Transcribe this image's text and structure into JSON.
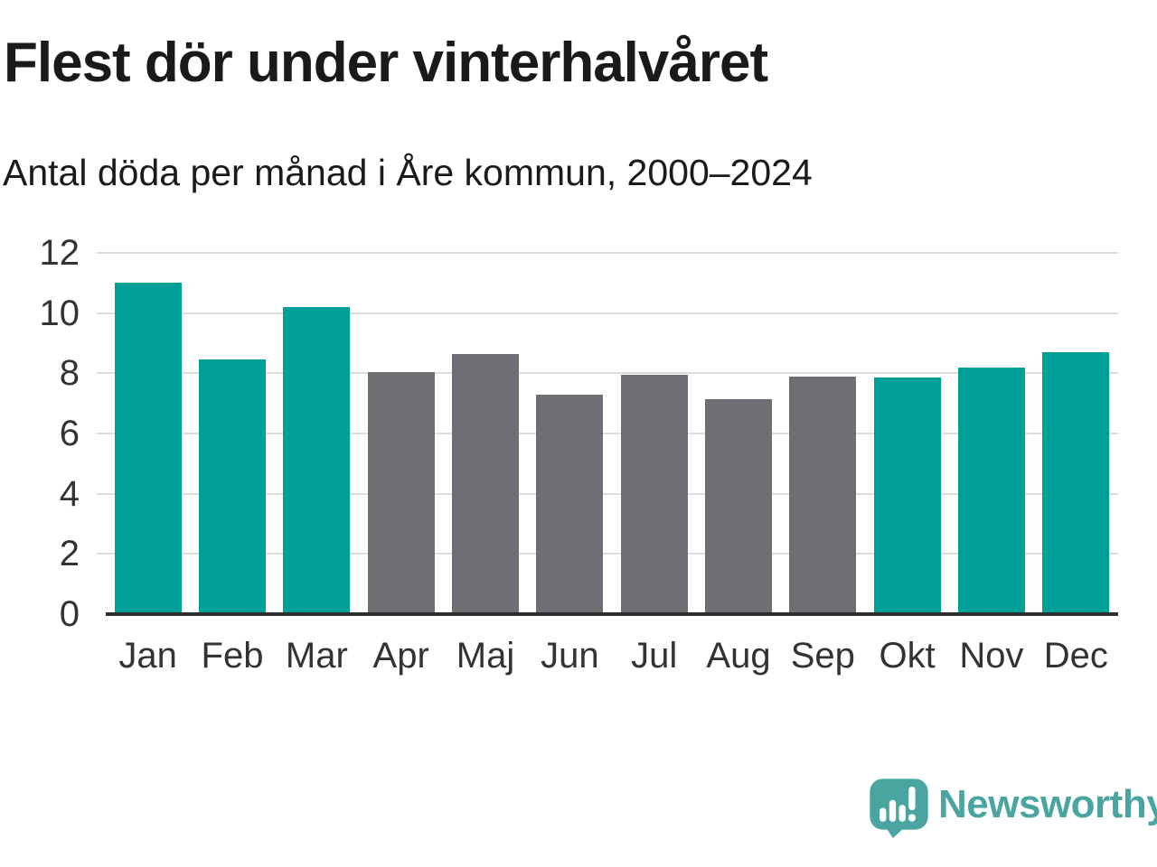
{
  "header": {
    "title": "Flest dör under vinterhalvåret",
    "subtitle": "Antal döda per månad i Åre kommun, 2000–2024"
  },
  "chart_data": {
    "type": "bar",
    "title": "Flest dör under vinterhalvåret",
    "subtitle": "Antal döda per månad i Åre kommun, 2000–2024",
    "categories": [
      "Jan",
      "Feb",
      "Mar",
      "Apr",
      "Maj",
      "Jun",
      "Jul",
      "Aug",
      "Sep",
      "Okt",
      "Nov",
      "Dec"
    ],
    "values": [
      11.0,
      8.45,
      10.2,
      8.05,
      8.65,
      7.3,
      7.95,
      7.15,
      7.9,
      7.85,
      8.2,
      8.7
    ],
    "bar_color_keys": [
      "winter",
      "winter",
      "winter",
      "summer",
      "summer",
      "summer",
      "summer",
      "summer",
      "summer",
      "winter",
      "winter",
      "winter"
    ],
    "colors": {
      "winter": "#00A098",
      "summer": "#6E6E73"
    },
    "xlabel": "",
    "ylabel": "",
    "ylim": [
      0,
      12
    ],
    "yticks": [
      0,
      2,
      4,
      6,
      8,
      10,
      12
    ],
    "grid": "horizontal-only",
    "legend": "none"
  },
  "footer": {
    "brand": "Newsworthy",
    "logo_icon": "newsworthy-speech-bubble-chart-icon",
    "brand_color": "#4AA5A0"
  }
}
